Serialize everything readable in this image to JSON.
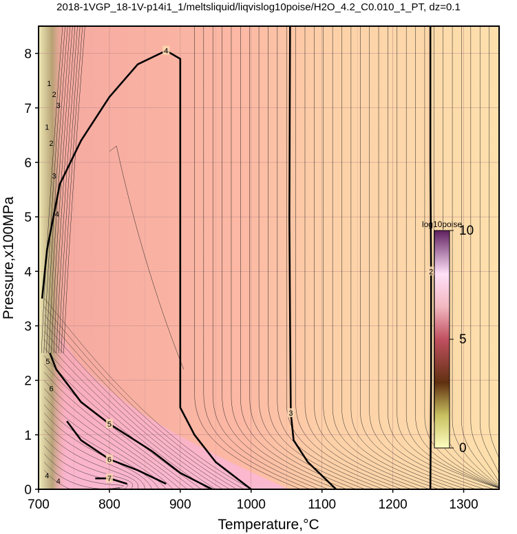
{
  "title": "2018-1VGP_18-1V-p14i1_1/meltsliquid/liqvislog10poise/H2O_4.2_C0.010_1_PT, dz=0.1",
  "chart_data": {
    "type": "heatmap",
    "xlabel": "Temperature,°C",
    "ylabel": "Pressure,x100MPa",
    "xlim": [
      700,
      1350
    ],
    "ylim": [
      0,
      8.5
    ],
    "x_ticks": [
      "700",
      "800",
      "900",
      "1000",
      "1100",
      "1200",
      "1300"
    ],
    "y_ticks": [
      "0",
      "1",
      "2",
      "3",
      "4",
      "5",
      "6",
      "7",
      "8"
    ],
    "grid": true,
    "colorbar": {
      "title": "log10poise",
      "ticks": [
        "0",
        "5",
        "10"
      ],
      "range": [
        0,
        10
      ],
      "placement": "inside-right"
    },
    "major_contours": [
      {
        "level": 2,
        "label": "2",
        "points": [
          [
            1253,
            0
          ],
          [
            1254,
            2
          ],
          [
            1254,
            4
          ],
          [
            1253,
            6
          ],
          [
            1253,
            8.5
          ]
        ]
      },
      {
        "level": 3,
        "label": "3",
        "points": [
          [
            1120,
            0
          ],
          [
            1080,
            0.5
          ],
          [
            1060,
            0.9
          ],
          [
            1056,
            1.4
          ],
          [
            1055,
            3
          ],
          [
            1054,
            5
          ],
          [
            1055,
            8.5
          ]
        ]
      },
      {
        "level": 4,
        "label": "4",
        "points": [
          [
            1000,
            0
          ],
          [
            950,
            0.5
          ],
          [
            920,
            1
          ],
          [
            900,
            1.5
          ],
          [
            900,
            6
          ],
          [
            900,
            7.9
          ],
          [
            880,
            8.05
          ],
          [
            840,
            7.8
          ],
          [
            800,
            7.2
          ],
          [
            760,
            6.4
          ],
          [
            730,
            5.6
          ],
          [
            712,
            4.4
          ],
          [
            705,
            3.5
          ]
        ]
      },
      {
        "level": 5,
        "label": "5",
        "points": [
          [
            945,
            0
          ],
          [
            900,
            0.3
          ],
          [
            860,
            0.7
          ],
          [
            800,
            1.2
          ],
          [
            760,
            1.6
          ],
          [
            725,
            2.2
          ],
          [
            716,
            2.5
          ]
        ]
      },
      {
        "level": 6,
        "label": "6",
        "points": [
          [
            880,
            0.1
          ],
          [
            840,
            0.35
          ],
          [
            800,
            0.55
          ],
          [
            760,
            0.9
          ],
          [
            740,
            1.25
          ]
        ]
      },
      {
        "level": 7,
        "label": "7",
        "points": [
          [
            825,
            0.1
          ],
          [
            800,
            0.2
          ],
          [
            780,
            0.2
          ]
        ]
      }
    ],
    "left_edge_labels": [
      "1",
      "2",
      "3",
      "1",
      "2",
      "3",
      "4",
      "5",
      "6",
      "4",
      "4"
    ]
  }
}
